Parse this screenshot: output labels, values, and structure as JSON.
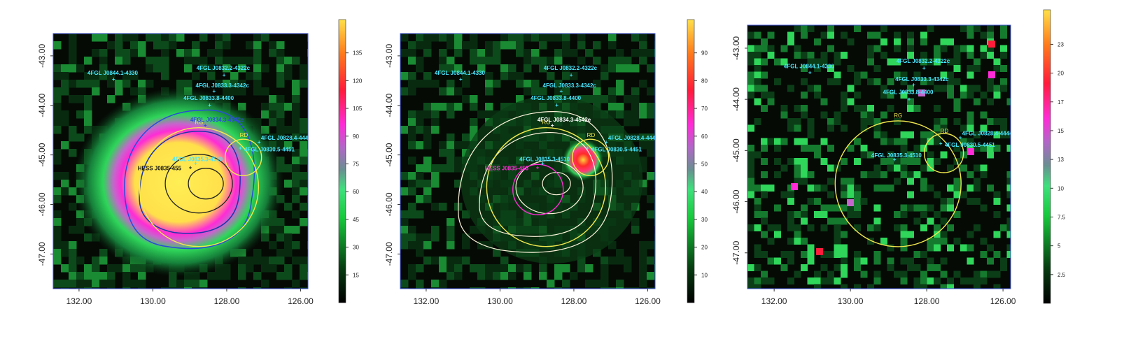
{
  "figure": {
    "panels": [
      {
        "id": "left",
        "x_ticks": [
          "132.00",
          "130.00",
          "128.00",
          "126.00"
        ],
        "y_ticks": [
          "-43.00",
          "-44.00",
          "-45.00",
          "-46.00",
          "-47.00"
        ],
        "colorbar_ticks": [
          "15",
          "30",
          "45",
          "60",
          "75",
          "90",
          "105",
          "120",
          "135"
        ],
        "sources": [
          {
            "label": "4FGL J0844.1-4330",
            "color": "#49e7ff"
          },
          {
            "label": "4FGL J0832.2-4322c",
            "color": "#49e7ff"
          },
          {
            "label": "4FGL J0833.3-4342c",
            "color": "#49e7ff"
          },
          {
            "label": "4FGL J0833.8-4400",
            "color": "#49e7ff"
          },
          {
            "label": "4FGL J0834.3-4542e",
            "color": "#2a4cd9"
          },
          {
            "label": "4FGL J0828.4-4444",
            "color": "#49e7ff"
          },
          {
            "label": "4FGL J0830.5-4451",
            "color": "#49e7ff"
          },
          {
            "label": "4FGL J0835.3-4510",
            "color": "#49e7ff"
          },
          {
            "label": "HESS J0835-455",
            "color": "#111111"
          }
        ],
        "regions": [
          {
            "label": "RG",
            "color": "#f2e94e"
          },
          {
            "label": "RD",
            "color": "#f2e94e"
          }
        ]
      },
      {
        "id": "middle",
        "x_ticks": [
          "132.00",
          "130.00",
          "128.00",
          "126.00"
        ],
        "y_ticks": [
          "-43.00",
          "-44.00",
          "-45.00",
          "-46.00",
          "-47.00"
        ],
        "colorbar_ticks": [
          "10",
          "20",
          "30",
          "40",
          "50",
          "60",
          "70",
          "80",
          "90"
        ],
        "sources": [
          {
            "label": "4FGL J0844.1-4330",
            "color": "#49e7ff"
          },
          {
            "label": "4FGL J0832.2-4322c",
            "color": "#49e7ff"
          },
          {
            "label": "4FGL J0833.3-4342c",
            "color": "#49e7ff"
          },
          {
            "label": "4FGL J0833.8-4400",
            "color": "#49e7ff"
          },
          {
            "label": "4FGL J0834.3-4542e",
            "color": "#ffffff"
          },
          {
            "label": "4FGL J0828.4-4444",
            "color": "#49e7ff"
          },
          {
            "label": "4FGL J0830.5-4451",
            "color": "#49e7ff"
          },
          {
            "label": "4FGL J0835.3-4510",
            "color": "#49e7ff"
          },
          {
            "label": "HESS J0835-455",
            "color": "#ff2bd6"
          }
        ],
        "regions": [
          {
            "label": "RG",
            "color": "#f2e94e"
          },
          {
            "label": "RD",
            "color": "#f2e94e"
          }
        ]
      },
      {
        "id": "right",
        "x_ticks": [
          "132.00",
          "130.00",
          "128.00",
          "126.00"
        ],
        "y_ticks": [
          "-43.00",
          "-44.00",
          "-45.00",
          "-46.00",
          "-47.00"
        ],
        "colorbar_ticks": [
          "2.5",
          "5",
          "7.5",
          "10",
          "13",
          "15",
          "17",
          "20",
          "23"
        ],
        "sources": [
          {
            "label": "4FGL J0844.1-4330",
            "color": "#49e7ff"
          },
          {
            "label": "4FGL J0832.2-4322c",
            "color": "#49e7ff"
          },
          {
            "label": "4FGL J0833.3-4342c",
            "color": "#49e7ff"
          },
          {
            "label": "4FGL J0833.8-4400",
            "color": "#49e7ff"
          },
          {
            "label": "4FGL J0828.4-4444",
            "color": "#49e7ff"
          },
          {
            "label": "4FGL J0830.5-4451",
            "color": "#49e7ff"
          },
          {
            "label": "4FGL J0835.3-4510",
            "color": "#49e7ff"
          }
        ],
        "regions": [
          {
            "label": "RG",
            "color": "#f2e94e"
          },
          {
            "label": "RD",
            "color": "#f2e94e"
          }
        ]
      }
    ]
  }
}
